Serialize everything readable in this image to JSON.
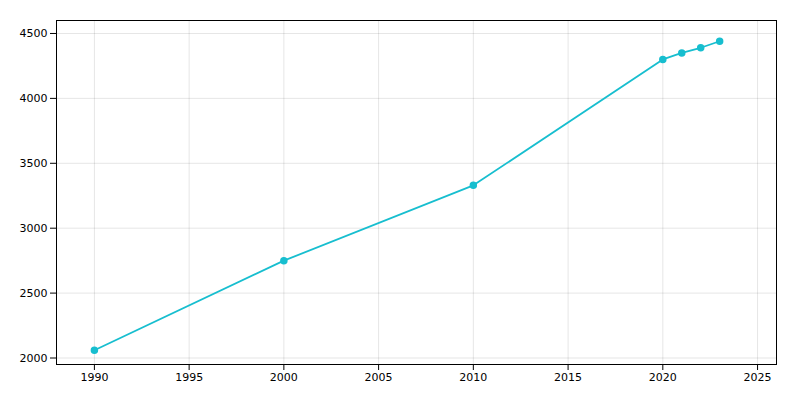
{
  "chart_data": {
    "type": "line",
    "x": [
      1990,
      2000,
      2010,
      2020,
      2021,
      2022,
      2023
    ],
    "values": [
      2060,
      2750,
      3330,
      4300,
      4350,
      4390,
      4440
    ],
    "color": "#17becf",
    "marker": "circle",
    "xlim": [
      1988,
      2026
    ],
    "ylim": [
      1950,
      4600
    ],
    "xticks": [
      1990,
      1995,
      2000,
      2005,
      2010,
      2015,
      2020,
      2025
    ],
    "yticks": [
      2000,
      2500,
      3000,
      3500,
      4000,
      4500
    ],
    "grid": true
  }
}
